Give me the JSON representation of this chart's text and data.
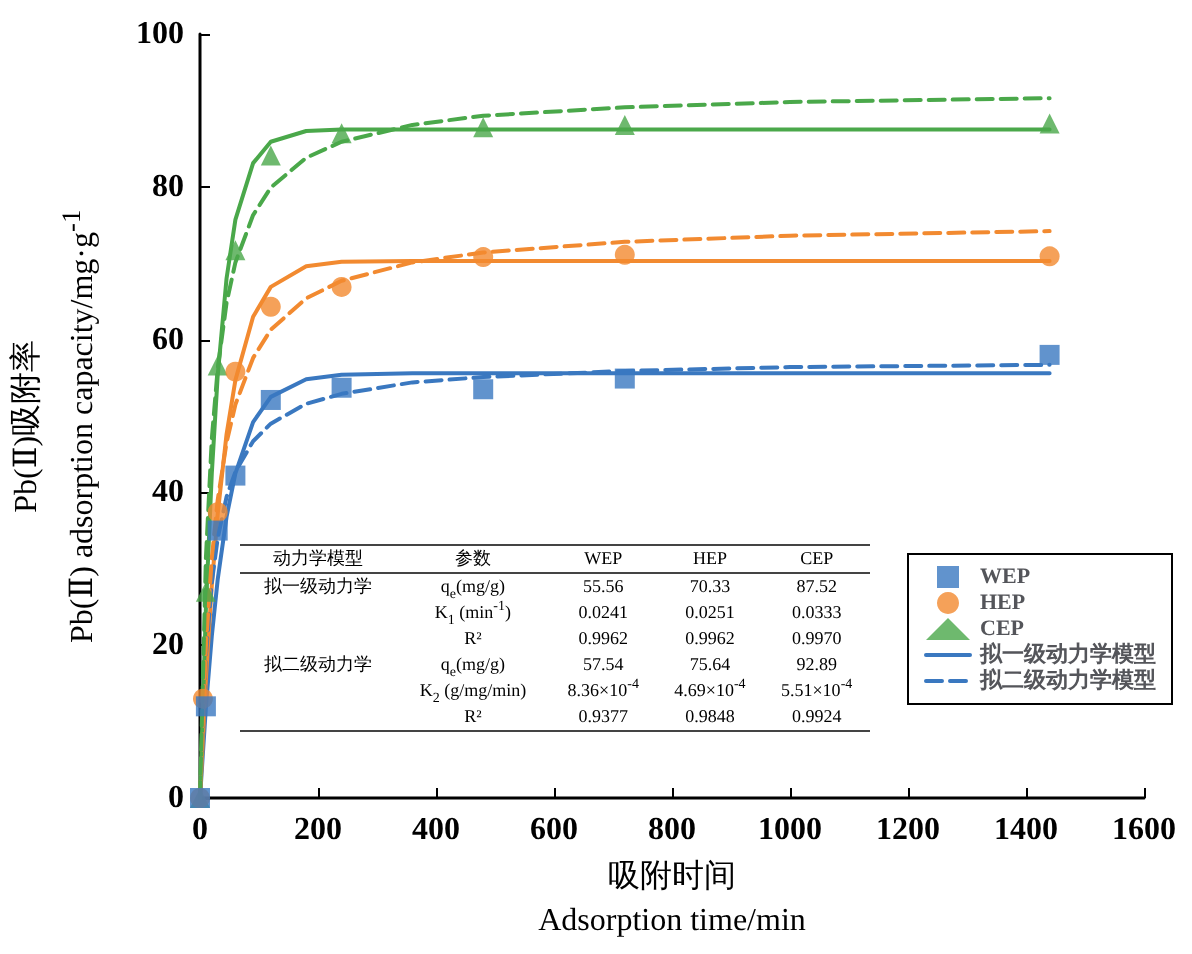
{
  "chart_data": {
    "type": "scatter",
    "xlabel": "吸附时间\nAdsorption time/min",
    "ylabel": "Pb(Ⅱ)吸附率\nPb(Ⅱ) adsorption capacity/mg·g$^{-1}$",
    "xlim": [
      0,
      1600
    ],
    "xticks": [
      0,
      200,
      400,
      600,
      800,
      1000,
      1200,
      1400,
      1600
    ],
    "ylim": [
      0,
      100
    ],
    "yticks": [
      0,
      20,
      40,
      60,
      80,
      100
    ],
    "grid": false,
    "legend": "right",
    "annotations": [
      "动力学模型",
      "参数",
      "WEP",
      "HEP",
      "CEP",
      "拟一级动力学",
      "q$_{e}$(mg/g)",
      "55.56",
      "70.33",
      "87.52",
      "K$_{1}$ (min$^{-1}$)",
      "0.0241",
      "0.0251",
      "0.0333",
      "R²",
      "0.9962",
      "0.9962",
      "0.9970",
      "拟二级动力学",
      "q$_{e}$(mg/g)",
      "57.54",
      "75.64",
      "92.89",
      "K$_{2}$ (g/mg/min)",
      "8.36×10$^{-4}$",
      "4.69×10$^{-4}$",
      "5.51×10$^{-4}$",
      "R²",
      "0.9377",
      "0.9848",
      "0.9924"
    ],
    "series": [
      {
        "name": "WEP",
        "marker": "square",
        "color": "#3a78c0",
        "x": [
          0,
          10,
          30,
          60,
          120,
          240,
          480,
          720,
          1440
        ],
        "values": [
          0,
          12,
          35,
          42.2,
          52.1,
          53.7,
          53.5,
          54.9,
          58.0
        ]
      },
      {
        "name": "HEP",
        "marker": "circle",
        "color": "#f28a30",
        "x": [
          0,
          5,
          30,
          60,
          120,
          240,
          480,
          720,
          1440
        ],
        "values": [
          0,
          13,
          37.4,
          55.8,
          64.3,
          66.9,
          70.8,
          71.1,
          70.9
        ]
      },
      {
        "name": "CEP",
        "marker": "triangle",
        "color": "#4aa84a",
        "x": [
          0,
          10,
          30,
          60,
          120,
          240,
          480,
          720,
          1440
        ],
        "values": [
          0,
          27,
          56.6,
          71.7,
          84.1,
          87.0,
          87.8,
          88.1,
          88.3
        ]
      },
      {
        "name": "拟一级动力学模型",
        "type": "line",
        "marker": "none",
        "line_style": "solid",
        "color": "#3a78c0",
        "x": [
          0,
          10,
          20,
          30,
          45,
          60,
          90,
          120,
          180,
          240,
          360,
          480,
          720,
          1000,
          1440
        ],
        "values": [
          0,
          11.9,
          21.2,
          28.6,
          36.8,
          42.5,
          49.2,
          52.5,
          54.8,
          55.4,
          55.6,
          55.6,
          55.6,
          55.6,
          55.6
        ]
      },
      {
        "type": "line",
        "marker": "none",
        "line_style": "solid",
        "color": "#f28a30",
        "x": [
          0,
          10,
          20,
          30,
          45,
          60,
          90,
          120,
          180,
          240,
          360,
          480,
          720,
          1000,
          1440
        ],
        "values": [
          0,
          15.6,
          27.8,
          37.2,
          47.6,
          54.7,
          63.0,
          66.9,
          69.6,
          70.2,
          70.3,
          70.3,
          70.3,
          70.3,
          70.3
        ]
      },
      {
        "type": "line",
        "marker": "none",
        "line_style": "solid",
        "color": "#4aa84a",
        "x": [
          0,
          10,
          20,
          30,
          45,
          60,
          90,
          120,
          180,
          240,
          360,
          480,
          720,
          1000,
          1440
        ],
        "values": [
          0,
          24.8,
          42.5,
          55.3,
          68.0,
          75.7,
          83.1,
          85.9,
          87.3,
          87.5,
          87.5,
          87.5,
          87.5,
          87.5,
          87.5
        ]
      },
      {
        "name": "拟二级动力学模型",
        "type": "line",
        "marker": "none",
        "line_style": "dashed",
        "color": "#3a78c0",
        "x": [
          0,
          10,
          20,
          30,
          45,
          60,
          90,
          120,
          180,
          240,
          360,
          480,
          720,
          1000,
          1440
        ],
        "values": [
          0,
          18.7,
          28.2,
          34.0,
          39.4,
          42.7,
          46.7,
          49.0,
          51.6,
          52.9,
          54.4,
          55.1,
          55.9,
          56.4,
          56.7
        ]
      },
      {
        "type": "line",
        "marker": "none",
        "line_style": "dashed",
        "color": "#f28a30",
        "x": [
          0,
          10,
          20,
          30,
          45,
          60,
          90,
          120,
          180,
          240,
          360,
          480,
          720,
          1000,
          1440
        ],
        "values": [
          0,
          19.8,
          31.4,
          39.0,
          46.5,
          51.5,
          57.6,
          61.3,
          65.4,
          67.7,
          70.1,
          71.4,
          72.8,
          73.6,
          74.2
        ]
      },
      {
        "type": "line",
        "marker": "none",
        "line_style": "dashed",
        "color": "#4aa84a",
        "x": [
          0,
          10,
          20,
          30,
          45,
          60,
          90,
          120,
          180,
          240,
          360,
          480,
          720,
          1000,
          1440
        ],
        "values": [
          0,
          31.4,
          47.0,
          56.2,
          64.8,
          70.1,
          76.3,
          79.9,
          83.8,
          85.9,
          88.1,
          89.3,
          90.4,
          91.1,
          91.6
        ]
      }
    ]
  }
}
